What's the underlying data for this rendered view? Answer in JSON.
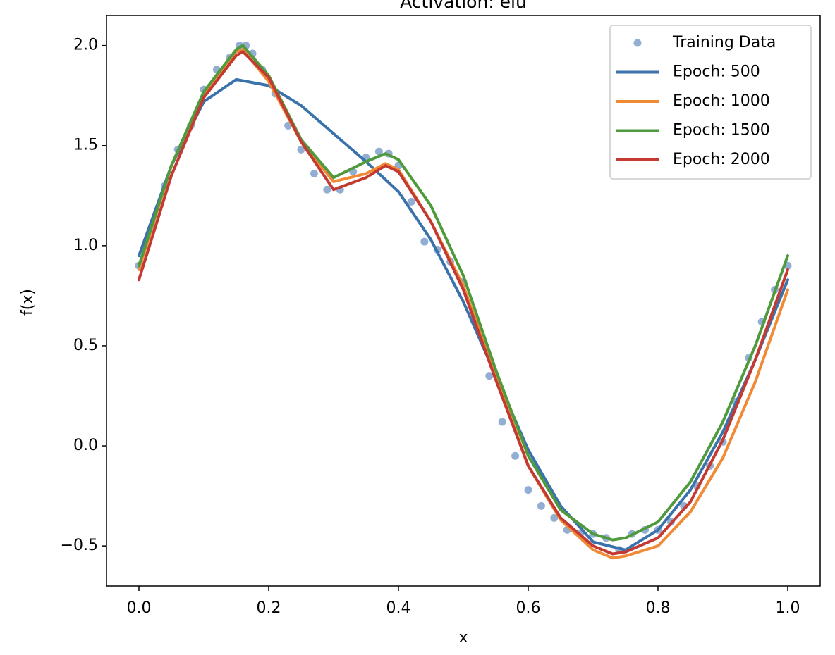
{
  "chart_data": {
    "type": "line",
    "title": "Activation: elu",
    "xlabel": "x",
    "ylabel": "f(x)",
    "xlim": [
      -0.05,
      1.05
    ],
    "ylim": [
      -0.7,
      2.15
    ],
    "x_ticks": [
      0.0,
      0.2,
      0.4,
      0.6,
      0.8,
      1.0
    ],
    "x_tick_labels": [
      "0.0",
      "0.2",
      "0.4",
      "0.6",
      "0.8",
      "1.0"
    ],
    "y_ticks": [
      -0.5,
      0.0,
      0.5,
      1.0,
      1.5,
      2.0
    ],
    "y_tick_labels": [
      "−0.5",
      "0.0",
      "0.5",
      "1.0",
      "1.5",
      "2.0"
    ],
    "grid": false,
    "legend_position": "top-right",
    "scatter": {
      "name": "Training Data",
      "color": "#4a7ab5",
      "x": [
        0.0,
        0.02,
        0.04,
        0.06,
        0.08,
        0.1,
        0.12,
        0.14,
        0.155,
        0.165,
        0.175,
        0.19,
        0.21,
        0.23,
        0.25,
        0.27,
        0.29,
        0.31,
        0.33,
        0.35,
        0.37,
        0.385,
        0.4,
        0.42,
        0.44,
        0.46,
        0.48,
        0.5,
        0.52,
        0.54,
        0.56,
        0.58,
        0.6,
        0.62,
        0.64,
        0.66,
        0.68,
        0.7,
        0.72,
        0.74,
        0.76,
        0.78,
        0.8,
        0.82,
        0.84,
        0.86,
        0.88,
        0.9,
        0.92,
        0.94,
        0.96,
        0.98,
        1.0
      ],
      "y": [
        0.9,
        1.08,
        1.3,
        1.48,
        1.6,
        1.78,
        1.88,
        1.94,
        2.0,
        2.0,
        1.96,
        1.88,
        1.76,
        1.6,
        1.48,
        1.36,
        1.28,
        1.28,
        1.37,
        1.44,
        1.47,
        1.46,
        1.4,
        1.22,
        1.02,
        0.98,
        0.92,
        0.82,
        0.6,
        0.35,
        0.12,
        -0.05,
        -0.22,
        -0.3,
        -0.36,
        -0.42,
        -0.44,
        -0.44,
        -0.46,
        -0.52,
        -0.44,
        -0.42,
        -0.42,
        -0.38,
        -0.3,
        -0.2,
        -0.1,
        0.02,
        0.22,
        0.44,
        0.62,
        0.78,
        0.9
      ]
    },
    "series": [
      {
        "name": "Epoch: 500",
        "color": "#3a72ac",
        "x": [
          0.0,
          0.05,
          0.1,
          0.15,
          0.2,
          0.25,
          0.3,
          0.35,
          0.4,
          0.45,
          0.5,
          0.55,
          0.6,
          0.65,
          0.7,
          0.75,
          0.8,
          0.85,
          0.9,
          0.95,
          1.0
        ],
        "y": [
          0.95,
          1.4,
          1.72,
          1.83,
          1.8,
          1.7,
          1.56,
          1.42,
          1.27,
          1.03,
          0.72,
          0.35,
          -0.02,
          -0.3,
          -0.48,
          -0.52,
          -0.42,
          -0.22,
          0.07,
          0.43,
          0.83
        ]
      },
      {
        "name": "Epoch: 1000",
        "color": "#f08a35",
        "x": [
          0.0,
          0.05,
          0.1,
          0.15,
          0.16,
          0.2,
          0.25,
          0.3,
          0.35,
          0.38,
          0.4,
          0.45,
          0.5,
          0.55,
          0.6,
          0.65,
          0.7,
          0.73,
          0.75,
          0.8,
          0.85,
          0.9,
          0.95,
          1.0
        ],
        "y": [
          0.88,
          1.4,
          1.76,
          1.97,
          1.98,
          1.82,
          1.52,
          1.32,
          1.36,
          1.41,
          1.38,
          1.12,
          0.8,
          0.35,
          -0.1,
          -0.37,
          -0.52,
          -0.56,
          -0.55,
          -0.5,
          -0.33,
          -0.06,
          0.32,
          0.78
        ]
      },
      {
        "name": "Epoch: 1500",
        "color": "#4f9a3c",
        "x": [
          0.0,
          0.05,
          0.1,
          0.15,
          0.16,
          0.2,
          0.25,
          0.3,
          0.35,
          0.38,
          0.4,
          0.45,
          0.5,
          0.55,
          0.6,
          0.65,
          0.7,
          0.73,
          0.75,
          0.8,
          0.85,
          0.9,
          0.95,
          1.0
        ],
        "y": [
          0.9,
          1.4,
          1.77,
          1.98,
          2.0,
          1.85,
          1.53,
          1.34,
          1.42,
          1.46,
          1.43,
          1.2,
          0.85,
          0.38,
          -0.05,
          -0.32,
          -0.44,
          -0.47,
          -0.46,
          -0.38,
          -0.18,
          0.12,
          0.5,
          0.95
        ]
      },
      {
        "name": "Epoch: 2000",
        "color": "#c43a32",
        "x": [
          0.0,
          0.05,
          0.1,
          0.15,
          0.16,
          0.2,
          0.25,
          0.3,
          0.35,
          0.38,
          0.4,
          0.45,
          0.5,
          0.55,
          0.6,
          0.65,
          0.7,
          0.73,
          0.75,
          0.8,
          0.85,
          0.9,
          0.95,
          1.0
        ],
        "y": [
          0.83,
          1.35,
          1.74,
          1.95,
          1.97,
          1.84,
          1.52,
          1.28,
          1.34,
          1.4,
          1.37,
          1.12,
          0.78,
          0.33,
          -0.1,
          -0.36,
          -0.5,
          -0.54,
          -0.53,
          -0.46,
          -0.28,
          0.03,
          0.43,
          0.88
        ]
      }
    ]
  }
}
